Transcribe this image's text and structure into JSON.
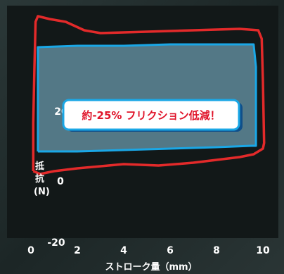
{
  "chart_data": {
    "type": "line",
    "title": "",
    "xlabel": "ストローク量（mm）",
    "ylabel_lines": [
      "抵",
      "抗",
      "(N)"
    ],
    "x_ticks": [
      "0",
      "2",
      "4",
      "6",
      "8",
      "10"
    ],
    "y_ticks": [
      "20",
      "0",
      "-20"
    ],
    "xlim": [
      0,
      10
    ],
    "ylim": [
      -30,
      50
    ],
    "callout": "約-25% フリクション低減！",
    "colors": {
      "series_a": "#e32a2a",
      "series_b": "#1aa7e6",
      "reduction_fill": "#5f8a9a"
    },
    "series": [
      {
        "color": "#e32a2a",
        "x": [
          0.1,
          0.1,
          0.15,
          0.2,
          0.3,
          0.8,
          1.5,
          2.3,
          3.0,
          5.0,
          7.0,
          9.0,
          9.8,
          9.95,
          10.0,
          10.05,
          10.0,
          9.6,
          9.0,
          8.0,
          7.0,
          5.5,
          4.0,
          2.0,
          1.0,
          0.4,
          0.1
        ],
        "y": [
          -7,
          10,
          30,
          46,
          48,
          47,
          46,
          43,
          42,
          42.5,
          43,
          43.5,
          43,
          40,
          25,
          3,
          1,
          -1,
          -2,
          -3,
          -4,
          -5,
          -4.5,
          -6,
          -7,
          -8,
          -7
        ]
      },
      {
        "color": "#1aa7e6",
        "x": [
          0.3,
          0.3,
          2.0,
          4.0,
          6.0,
          8.0,
          9.6,
          9.7,
          9.7,
          9.5,
          8.0,
          6.0,
          4.0,
          2.0,
          0.3
        ],
        "y": [
          0,
          37,
          37.5,
          37.5,
          38,
          38,
          38,
          30,
          2,
          2,
          1.5,
          1,
          0.5,
          0,
          0
        ]
      }
    ]
  }
}
